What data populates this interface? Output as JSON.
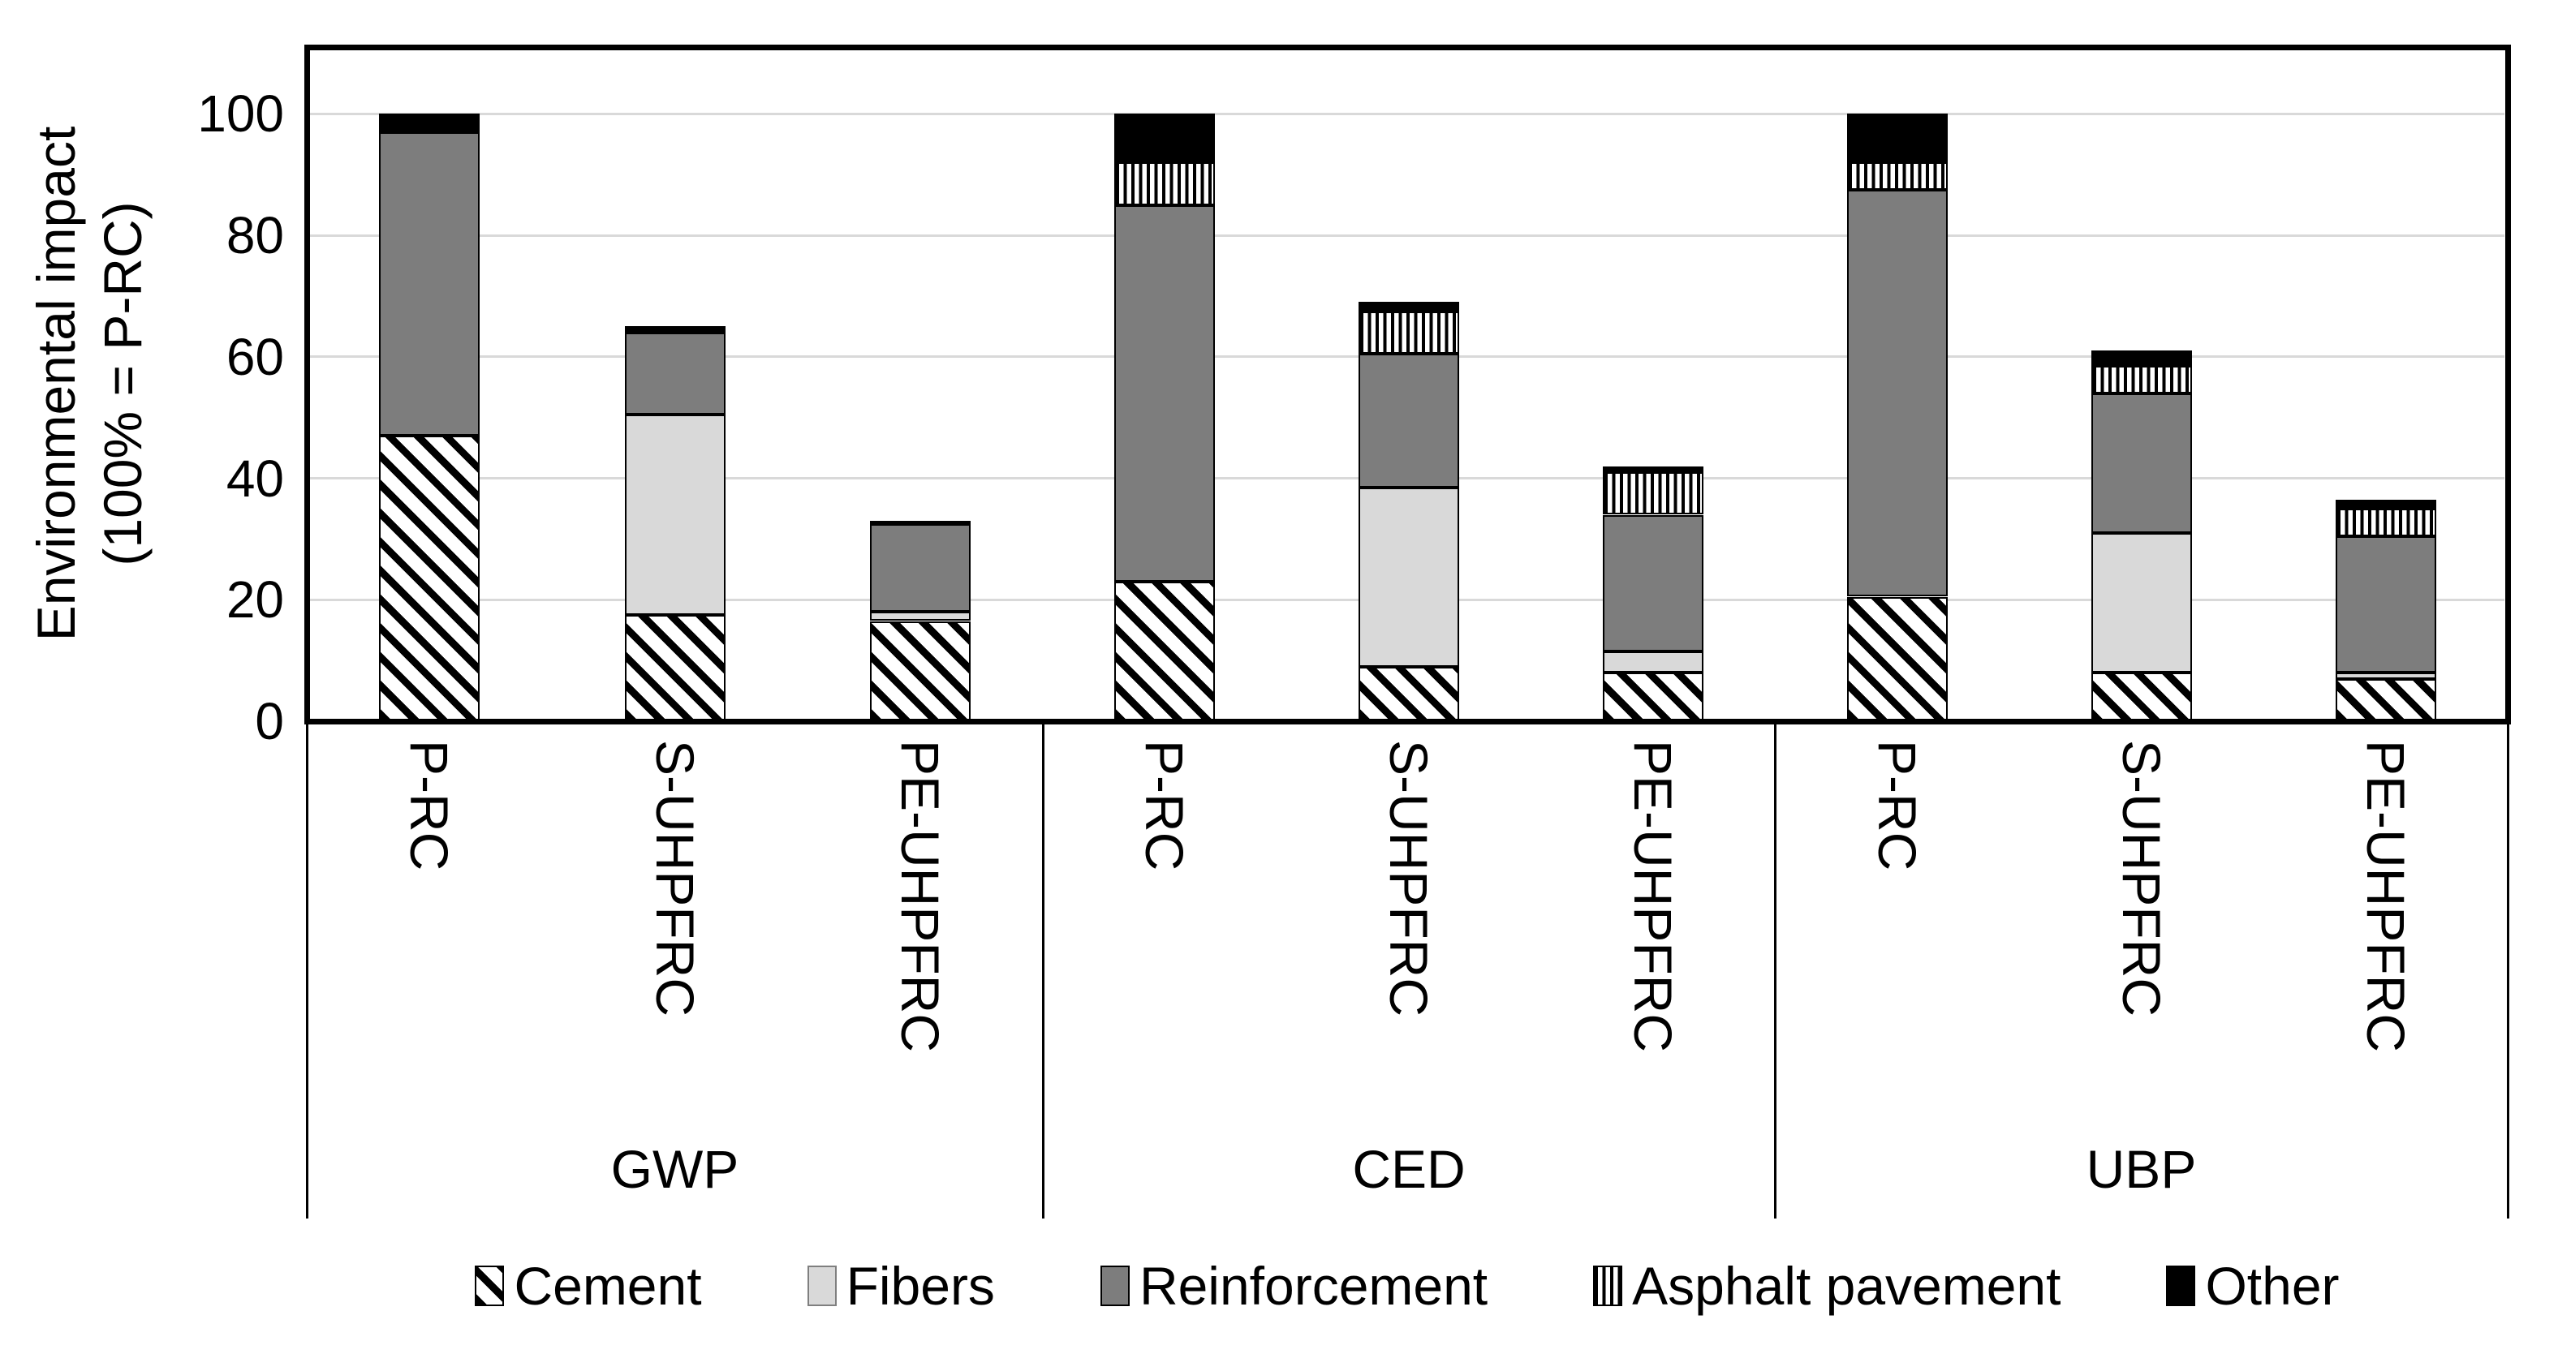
{
  "chart_data": {
    "type": "bar",
    "subtype": "stacked",
    "title": "",
    "ylabel_lines": [
      "Environmental impact",
      "(100% = P-RC)"
    ],
    "y_axis": {
      "min": 0,
      "max_label": 100,
      "axis_top": 111,
      "tick_step": 20,
      "ticks": [
        0,
        20,
        40,
        60,
        80,
        100
      ],
      "grid": true
    },
    "groups": [
      "GWP",
      "CED",
      "UBP"
    ],
    "bar_labels": [
      "P-RC",
      "S-UHPFRC",
      "PE-UHPFRC"
    ],
    "bar_order_note": "values arrays run GWP:P-RC, GWP:S-UHPFRC, GWP:PE-UHPFRC, CED:P-RC, CED:S-UHPFRC, CED:PE-UHPFRC, UBP:P-RC, UBP:S-UHPFRC, UBP:PE-UHPFRC",
    "series": [
      {
        "name": "Cement",
        "fill": "hatch-diagonal",
        "color": "#000000",
        "values": [
          47,
          17.5,
          16.5,
          23,
          9,
          8,
          20.5,
          8,
          7
        ]
      },
      {
        "name": "Fibers",
        "fill": "solid",
        "color": "#d9d9d9",
        "values": [
          0,
          33,
          1.5,
          0,
          29.5,
          3.5,
          0,
          23,
          1
        ]
      },
      {
        "name": "Reinforcement",
        "fill": "solid",
        "color": "#7d7d7d",
        "values": [
          50,
          13.5,
          14.5,
          62,
          22,
          22.5,
          67,
          23,
          22.5
        ]
      },
      {
        "name": "Asphalt pavement",
        "fill": "hatch-vertical",
        "color": "#000000",
        "values": [
          0,
          0,
          0,
          7,
          7,
          7,
          4.5,
          4.5,
          4.5
        ]
      },
      {
        "name": "Other",
        "fill": "solid",
        "color": "#000000",
        "values": [
          3,
          1,
          0.5,
          8,
          1.5,
          1,
          8,
          2.5,
          1.5
        ]
      }
    ],
    "totals": [
      100,
      65,
      33,
      100,
      69,
      42,
      100,
      61,
      36.5
    ],
    "legend": {
      "position": "bottom",
      "items": [
        {
          "label": "Cement",
          "fill": "hatch-diagonal",
          "color": "#000000"
        },
        {
          "label": "Fibers",
          "fill": "solid",
          "color": "#d9d9d9"
        },
        {
          "label": "Reinforcement",
          "fill": "solid",
          "color": "#7d7d7d"
        },
        {
          "label": "Asphalt pavement",
          "fill": "hatch-vertical",
          "color": "#000000"
        },
        {
          "label": "Other",
          "fill": "solid",
          "color": "#000000"
        }
      ]
    },
    "colors": {
      "grid": "#d9d9d9",
      "axis": "#000000",
      "text": "#000000",
      "background": "#ffffff"
    }
  }
}
